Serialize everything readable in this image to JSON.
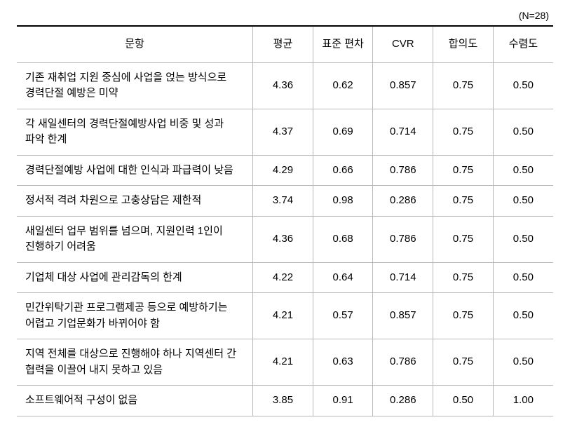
{
  "n_label": "(N=28)",
  "headers": {
    "item": "문항",
    "mean": "평균",
    "sd": "표준\n편차",
    "cvr": "CVR",
    "consensus": "합의도",
    "convergence": "수렴도"
  },
  "rows": [
    {
      "item": "기존 재취업 지원 중심에 사업을 얹는 방식으로 경력단절 예방은 미약",
      "mean": "4.36",
      "sd": "0.62",
      "cvr": "0.857",
      "consensus": "0.75",
      "convergence": "0.50"
    },
    {
      "item": "각 새일센터의 경력단절예방사업 비중 및 성과 파악 한계",
      "mean": "4.37",
      "sd": "0.69",
      "cvr": "0.714",
      "consensus": "0.75",
      "convergence": "0.50"
    },
    {
      "item": "경력단절예방 사업에 대한 인식과 파급력이 낮음",
      "mean": "4.29",
      "sd": "0.66",
      "cvr": "0.786",
      "consensus": "0.75",
      "convergence": "0.50"
    },
    {
      "item": "정서적 격려 차원으로 고충상담은 제한적",
      "mean": "3.74",
      "sd": "0.98",
      "cvr": "0.286",
      "consensus": "0.75",
      "convergence": "0.50"
    },
    {
      "item": "새일센터 업무 범위를 넘으며, 지원인력 1인이 진행하기 어려움",
      "mean": "4.36",
      "sd": "0.68",
      "cvr": "0.786",
      "consensus": "0.75",
      "convergence": "0.50"
    },
    {
      "item": "기업체 대상 사업에 관리감독의 한계",
      "mean": "4.22",
      "sd": "0.64",
      "cvr": "0.714",
      "consensus": "0.75",
      "convergence": "0.50"
    },
    {
      "item": "민간위탁기관 프로그램제공 등으로 예방하기는 어렵고 기업문화가 바뀌어야 함",
      "mean": "4.21",
      "sd": "0.57",
      "cvr": "0.857",
      "consensus": "0.75",
      "convergence": "0.50"
    },
    {
      "item": "지역 전체를 대상으로 진행해야 하나 지역센터 간 협력을 이끌어 내지 못하고 있음",
      "mean": "4.21",
      "sd": "0.63",
      "cvr": "0.786",
      "consensus": "0.75",
      "convergence": "0.50"
    },
    {
      "item": "소프트웨어적 구성이 없음",
      "mean": "3.85",
      "sd": "0.91",
      "cvr": "0.286",
      "consensus": "0.50",
      "convergence": "1.00"
    }
  ]
}
